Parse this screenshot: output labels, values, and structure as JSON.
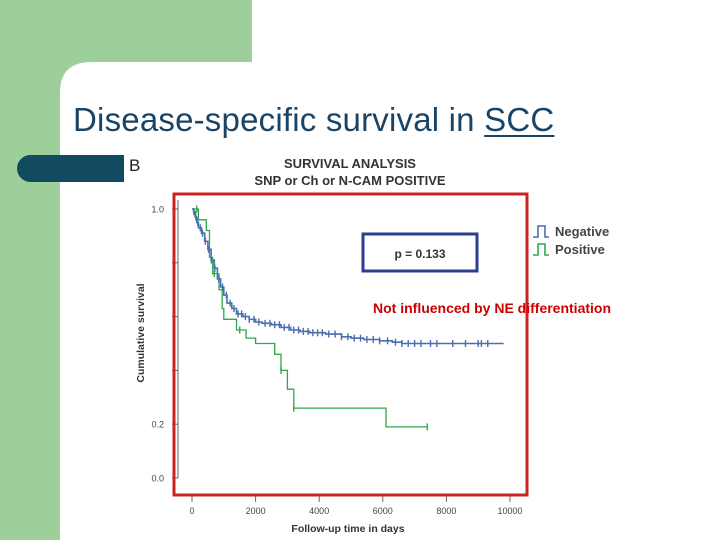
{
  "slide": {
    "title_main": "Disease-specific survival in ",
    "title_underlined": "SCC",
    "title_color": "#1a4466",
    "accent_green": "#9dcf9a",
    "bullet_color": "#124a60"
  },
  "chart_data": {
    "type": "line",
    "panel_label": "B",
    "title_line1": "SURVIVAL ANALYSIS",
    "title_line2": "SNP or Ch or N-CAM POSITIVE",
    "xlabel": "Follow-up time in days",
    "ylabel": "Cumulative survival",
    "xlim": [
      0,
      10000
    ],
    "ylim": [
      0.0,
      1.0
    ],
    "x_ticks": [
      0,
      2000,
      4000,
      6000,
      8000,
      10000
    ],
    "x_tick_labels": [
      "0",
      "2000",
      "4000",
      "6000",
      "8000",
      "10000"
    ],
    "y_tick_labels": [
      {
        "value": 1.0,
        "label": "1.0"
      },
      {
        "value": 0.2,
        "label": "0.2"
      },
      {
        "value": 0.0,
        "label": "0.0"
      }
    ],
    "y_minor_ticks": [
      0.8,
      0.6,
      0.4
    ],
    "p_value_label": "p = 0.133",
    "annotation": "Not influenced by NE differentiation",
    "annotation_color": "#cc0000",
    "highlight_color": "#cc2222",
    "series": [
      {
        "name": "Negative",
        "color": "#4a6fae",
        "steps": [
          [
            0,
            1.0
          ],
          [
            50,
            0.99
          ],
          [
            100,
            0.97
          ],
          [
            150,
            0.95
          ],
          [
            200,
            0.93
          ],
          [
            300,
            0.91
          ],
          [
            400,
            0.88
          ],
          [
            500,
            0.85
          ],
          [
            600,
            0.81
          ],
          [
            700,
            0.78
          ],
          [
            800,
            0.74
          ],
          [
            900,
            0.71
          ],
          [
            1000,
            0.68
          ],
          [
            1100,
            0.65
          ],
          [
            1250,
            0.63
          ],
          [
            1400,
            0.61
          ],
          [
            1600,
            0.6
          ],
          [
            1800,
            0.59
          ],
          [
            2000,
            0.58
          ],
          [
            2200,
            0.575
          ],
          [
            2500,
            0.57
          ],
          [
            2800,
            0.56
          ],
          [
            3100,
            0.55
          ],
          [
            3400,
            0.545
          ],
          [
            3700,
            0.54
          ],
          [
            4200,
            0.535
          ],
          [
            4700,
            0.525
          ],
          [
            5000,
            0.52
          ],
          [
            5400,
            0.515
          ],
          [
            5900,
            0.51
          ],
          [
            6300,
            0.505
          ],
          [
            6600,
            0.5
          ],
          [
            7300,
            0.5
          ],
          [
            9800,
            0.5
          ]
        ],
        "censor_times": [
          60,
          120,
          180,
          260,
          330,
          420,
          520,
          610,
          720,
          840,
          960,
          1080,
          1200,
          1320,
          1450,
          1560,
          1680,
          1800,
          1950,
          2100,
          2300,
          2450,
          2600,
          2750,
          2900,
          3050,
          3200,
          3350,
          3500,
          3650,
          3800,
          3950,
          4100,
          4300,
          4500,
          4700,
          4900,
          5100,
          5300,
          5500,
          5700,
          5900,
          6150,
          6400,
          6600,
          6800,
          7000,
          7200,
          7500,
          7700,
          8200,
          8600,
          9000,
          9100,
          9300
        ]
      },
      {
        "name": "Positive",
        "color": "#2ea84a",
        "steps": [
          [
            0,
            1.0
          ],
          [
            200,
            0.96
          ],
          [
            450,
            0.92
          ],
          [
            550,
            0.82
          ],
          [
            650,
            0.76
          ],
          [
            850,
            0.7
          ],
          [
            950,
            0.63
          ],
          [
            1000,
            0.59
          ],
          [
            1400,
            0.55
          ],
          [
            1700,
            0.52
          ],
          [
            2000,
            0.5
          ],
          [
            2600,
            0.46
          ],
          [
            2800,
            0.4
          ],
          [
            3000,
            0.33
          ],
          [
            3200,
            0.26
          ],
          [
            5950,
            0.26
          ],
          [
            6100,
            0.19
          ],
          [
            7400,
            0.19
          ]
        ],
        "censor_times": [
          150,
          700,
          1500,
          2800,
          3200,
          7400
        ]
      }
    ]
  }
}
